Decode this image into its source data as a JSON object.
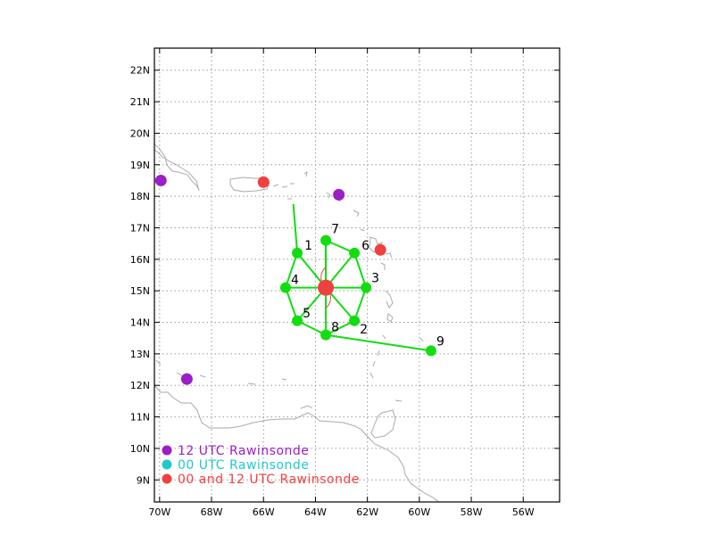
{
  "map": {
    "lon_range": [
      -70.2,
      -54.6
    ],
    "lat_range": [
      8.3,
      22.7
    ],
    "x_ticks": [
      {
        "lon": -70,
        "label": "70W"
      },
      {
        "lon": -68,
        "label": "68W"
      },
      {
        "lon": -66,
        "label": "66W"
      },
      {
        "lon": -64,
        "label": "64W"
      },
      {
        "lon": -62,
        "label": "62W"
      },
      {
        "lon": -60,
        "label": "60W"
      },
      {
        "lon": -58,
        "label": "58W"
      },
      {
        "lon": -56,
        "label": "56W"
      }
    ],
    "y_ticks": [
      {
        "lat": 9,
        "label": "9N"
      },
      {
        "lat": 10,
        "label": "10N"
      },
      {
        "lat": 11,
        "label": "11N"
      },
      {
        "lat": 12,
        "label": "12N"
      },
      {
        "lat": 13,
        "label": "13N"
      },
      {
        "lat": 14,
        "label": "14N"
      },
      {
        "lat": 15,
        "label": "15N"
      },
      {
        "lat": 16,
        "label": "16N"
      },
      {
        "lat": 17,
        "label": "17N"
      },
      {
        "lat": 18,
        "label": "18N"
      },
      {
        "lat": 19,
        "label": "19N"
      },
      {
        "lat": 20,
        "label": "20N"
      },
      {
        "lat": 21,
        "label": "21N"
      },
      {
        "lat": 22,
        "label": "22N"
      }
    ],
    "grid": true,
    "colors": {
      "rawinsonde_12": "#9b1ec8",
      "rawinsonde_00": "#22c8c8",
      "rawinsonde_00_12": "#f04040",
      "dropsonde": "#11dd11",
      "center": "#f04040",
      "coast": "#aaaaaa"
    },
    "center": {
      "lon": -63.6,
      "lat": 15.1
    },
    "dropsondes": [
      {
        "id": "1",
        "lon": -64.7,
        "lat": 16.2
      },
      {
        "id": "2",
        "lon": -62.5,
        "lat": 14.05
      },
      {
        "id": "3",
        "lon": -62.05,
        "lat": 15.1
      },
      {
        "id": "4",
        "lon": -65.15,
        "lat": 15.1
      },
      {
        "id": "5",
        "lon": -64.7,
        "lat": 14.05
      },
      {
        "id": "6",
        "lon": -62.5,
        "lat": 16.2
      },
      {
        "id": "7",
        "lon": -63.6,
        "lat": 16.6
      },
      {
        "id": "8",
        "lon": -63.6,
        "lat": 13.6
      },
      {
        "id": "9",
        "lon": -59.55,
        "lat": 13.1
      }
    ],
    "track_start": {
      "lon": -64.85,
      "lat": 17.75
    },
    "rawinsondes_12": [
      {
        "lon": -69.95,
        "lat": 18.5
      },
      {
        "lon": -63.1,
        "lat": 18.05
      },
      {
        "lon": -68.95,
        "lat": 12.2
      }
    ],
    "rawinsondes_00_12": [
      {
        "lon": -66.0,
        "lat": 18.45
      },
      {
        "lon": -61.5,
        "lat": 16.3
      }
    ]
  },
  "legend": [
    {
      "key": "rawinsonde_12",
      "label": "12 UTC Rawinsonde"
    },
    {
      "key": "rawinsonde_00",
      "label": "00 UTC Rawinsonde"
    },
    {
      "key": "rawinsonde_00_12",
      "label": "00 and 12 UTC Rawinsonde"
    }
  ]
}
